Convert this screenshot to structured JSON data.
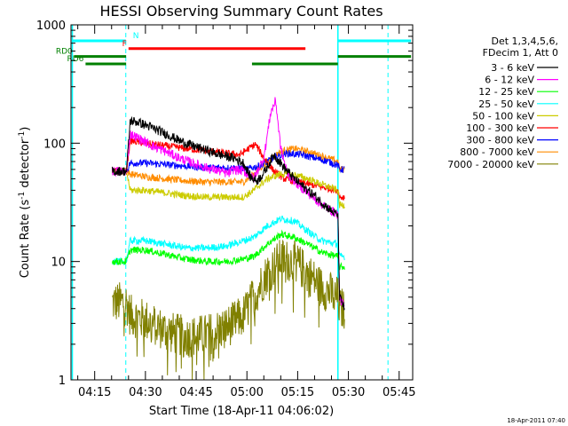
{
  "chart_data": {
    "type": "line",
    "title": "HESSI Observing Summary Count Rates",
    "xlabel": "Start Time (18-Apr-11 04:06:02)",
    "ylabel_main": "Count Rate (s",
    "ylabel_exp1": "-1",
    "ylabel_mid": " detector",
    "ylabel_exp2": "-1",
    "ylabel_end": ")",
    "timestamp": "18-Apr-2011 07:40",
    "x_unit": "minutes of day (UT)",
    "xlim": [
      248,
      349
    ],
    "ylim": [
      1,
      1000
    ],
    "yscale": "log",
    "x_ticks": [
      {
        "value": 255,
        "label": "04:15"
      },
      {
        "value": 270,
        "label": "04:30"
      },
      {
        "value": 285,
        "label": "04:45"
      },
      {
        "value": 300,
        "label": "05:00"
      },
      {
        "value": 315,
        "label": "05:15"
      },
      {
        "value": 330,
        "label": "05:30"
      },
      {
        "value": 345,
        "label": "05:45"
      }
    ],
    "y_ticks": [
      {
        "value": 1,
        "label": "1"
      },
      {
        "value": 10,
        "label": "10"
      },
      {
        "value": 100,
        "label": "100"
      },
      {
        "value": 1000,
        "label": "1000"
      }
    ],
    "legend": {
      "header1": "Det 1,3,4,5,6,",
      "header2": "FDecim 1, Att 0",
      "placement": "right"
    },
    "night_markers": [
      248.4,
      264.2,
      326.9,
      341.7
    ],
    "flags": [
      {
        "name": "N",
        "color": "#00ffff",
        "segments": [
          [
            248.4,
            264.2
          ],
          [
            326.9,
            348.5
          ]
        ],
        "y_rel": 0.035
      },
      {
        "name": "F",
        "color": "#ff0000",
        "segments": [
          [
            265.0,
            317.3
          ]
        ],
        "y_rel": 0.057
      },
      {
        "name": "RD0",
        "color": "#008000",
        "segments": [
          [
            249.0,
            264.3
          ],
          [
            326.9,
            348.5
          ]
        ],
        "y_rel": 0.079
      },
      {
        "name": "RD6",
        "color": "#008000",
        "segments": [
          [
            252.3,
            264.3
          ],
          [
            301.5,
            326.9
          ]
        ],
        "y_rel": 0.1
      }
    ],
    "series": [
      {
        "name": "3 - 6 keV",
        "color": "#000000",
        "x": [
          260.2,
          264.4,
          265.5,
          268,
          272,
          276,
          280,
          284,
          288,
          292,
          296,
          299,
          301,
          303,
          305,
          308,
          311,
          314,
          317,
          320,
          323,
          325.5,
          326.9,
          327.4,
          328.9
        ],
        "y": [
          58,
          58,
          155,
          150,
          135,
          120,
          105,
          95,
          87,
          80,
          75,
          68,
          52,
          48,
          56,
          80,
          62,
          50,
          42,
          36,
          30,
          26,
          25,
          5,
          4
        ]
      },
      {
        "name": "6 - 12 keV",
        "color": "#ff00ff",
        "x": [
          260.2,
          264.4,
          265.5,
          268,
          272,
          276,
          280,
          284,
          288,
          292,
          294.5,
          296,
          299,
          302,
          305,
          307,
          308.5,
          310,
          312,
          315,
          318,
          321,
          324,
          326.9,
          327.4,
          328.9
        ],
        "y": [
          58,
          58,
          120,
          110,
          95,
          85,
          75,
          68,
          62,
          58,
          55,
          60,
          58,
          50,
          75,
          180,
          230,
          90,
          55,
          45,
          38,
          32,
          28,
          25,
          5,
          4
        ]
      },
      {
        "name": "12 - 25 keV",
        "color": "#00ff00",
        "x": [
          260.2,
          264.4,
          265.5,
          270,
          276,
          282,
          288,
          294,
          299,
          302,
          306,
          310,
          314,
          318,
          322,
          326.9,
          327.4,
          328.9
        ],
        "y": [
          10,
          10,
          12.5,
          12.5,
          11.5,
          10.5,
          10,
          10,
          10.5,
          11,
          14,
          17,
          16,
          14,
          12,
          11,
          9,
          9
        ]
      },
      {
        "name": "25 - 50 keV",
        "color": "#00ffff",
        "x": [
          260.2,
          264.4,
          265.5,
          270,
          276,
          282,
          288,
          294,
          299,
          302,
          306,
          310,
          314,
          318,
          322,
          326.9,
          327.4,
          328.9
        ],
        "y": [
          10,
          10,
          15,
          15,
          14,
          13,
          13,
          13.5,
          15,
          16,
          20,
          23,
          22,
          18,
          15,
          14,
          11,
          11
        ]
      },
      {
        "name": "50 - 100 keV",
        "color": "#cccc00",
        "x": [
          260.2,
          264.4,
          265.5,
          270,
          276,
          282,
          288,
          294,
          299,
          302,
          306,
          310,
          314,
          318,
          322,
          326.9,
          327.4,
          328.9
        ],
        "y": [
          58,
          58,
          40,
          40,
          38,
          36,
          35,
          35,
          35,
          40,
          50,
          55,
          54,
          50,
          45,
          40,
          30,
          30
        ]
      },
      {
        "name": "100 - 300 keV",
        "color": "#ff0000",
        "x": [
          260.2,
          264.4,
          265.5,
          270,
          276,
          282,
          288,
          294,
          298,
          300,
          302.5,
          305,
          308,
          311,
          314,
          317,
          320,
          323,
          326.9,
          327.4,
          328.9
        ],
        "y": [
          58,
          58,
          105,
          100,
          95,
          90,
          86,
          82,
          80,
          88,
          98,
          75,
          58,
          50,
          48,
          46,
          44,
          42,
          40,
          35,
          35
        ]
      },
      {
        "name": "300 - 800 keV",
        "color": "#0000ff",
        "x": [
          260.2,
          264.4,
          265.5,
          270,
          276,
          282,
          288,
          294,
          298,
          300,
          304,
          308,
          312,
          316,
          320,
          324,
          326.9,
          327.4,
          328.9
        ],
        "y": [
          58,
          58,
          68,
          68,
          66,
          64,
          62,
          62,
          62,
          60,
          65,
          75,
          82,
          80,
          75,
          70,
          65,
          60,
          60
        ]
      },
      {
        "name": "800 - 7000 keV",
        "color": "#ff8c00",
        "x": [
          260.2,
          264.4,
          265.5,
          270,
          276,
          282,
          288,
          294,
          299,
          302,
          306,
          310,
          314,
          318,
          322,
          326.9,
          327.4,
          328.9
        ],
        "y": [
          58,
          58,
          55,
          52,
          50,
          48,
          47,
          47,
          47,
          55,
          70,
          85,
          90,
          85,
          78,
          70,
          60,
          60
        ]
      },
      {
        "name": "7000 - 20000 keV",
        "color": "#808000",
        "x": [
          260.2,
          264.4,
          265.5,
          270,
          276,
          282,
          288,
          294,
          299,
          302,
          306,
          310,
          314,
          318,
          322,
          326.9,
          327.4,
          328.9
        ],
        "y": [
          4.5,
          4.5,
          3.5,
          3.2,
          2.6,
          2.3,
          2.4,
          2.8,
          3.5,
          5,
          8,
          10.5,
          10,
          8,
          6,
          5,
          4,
          4
        ]
      }
    ]
  }
}
